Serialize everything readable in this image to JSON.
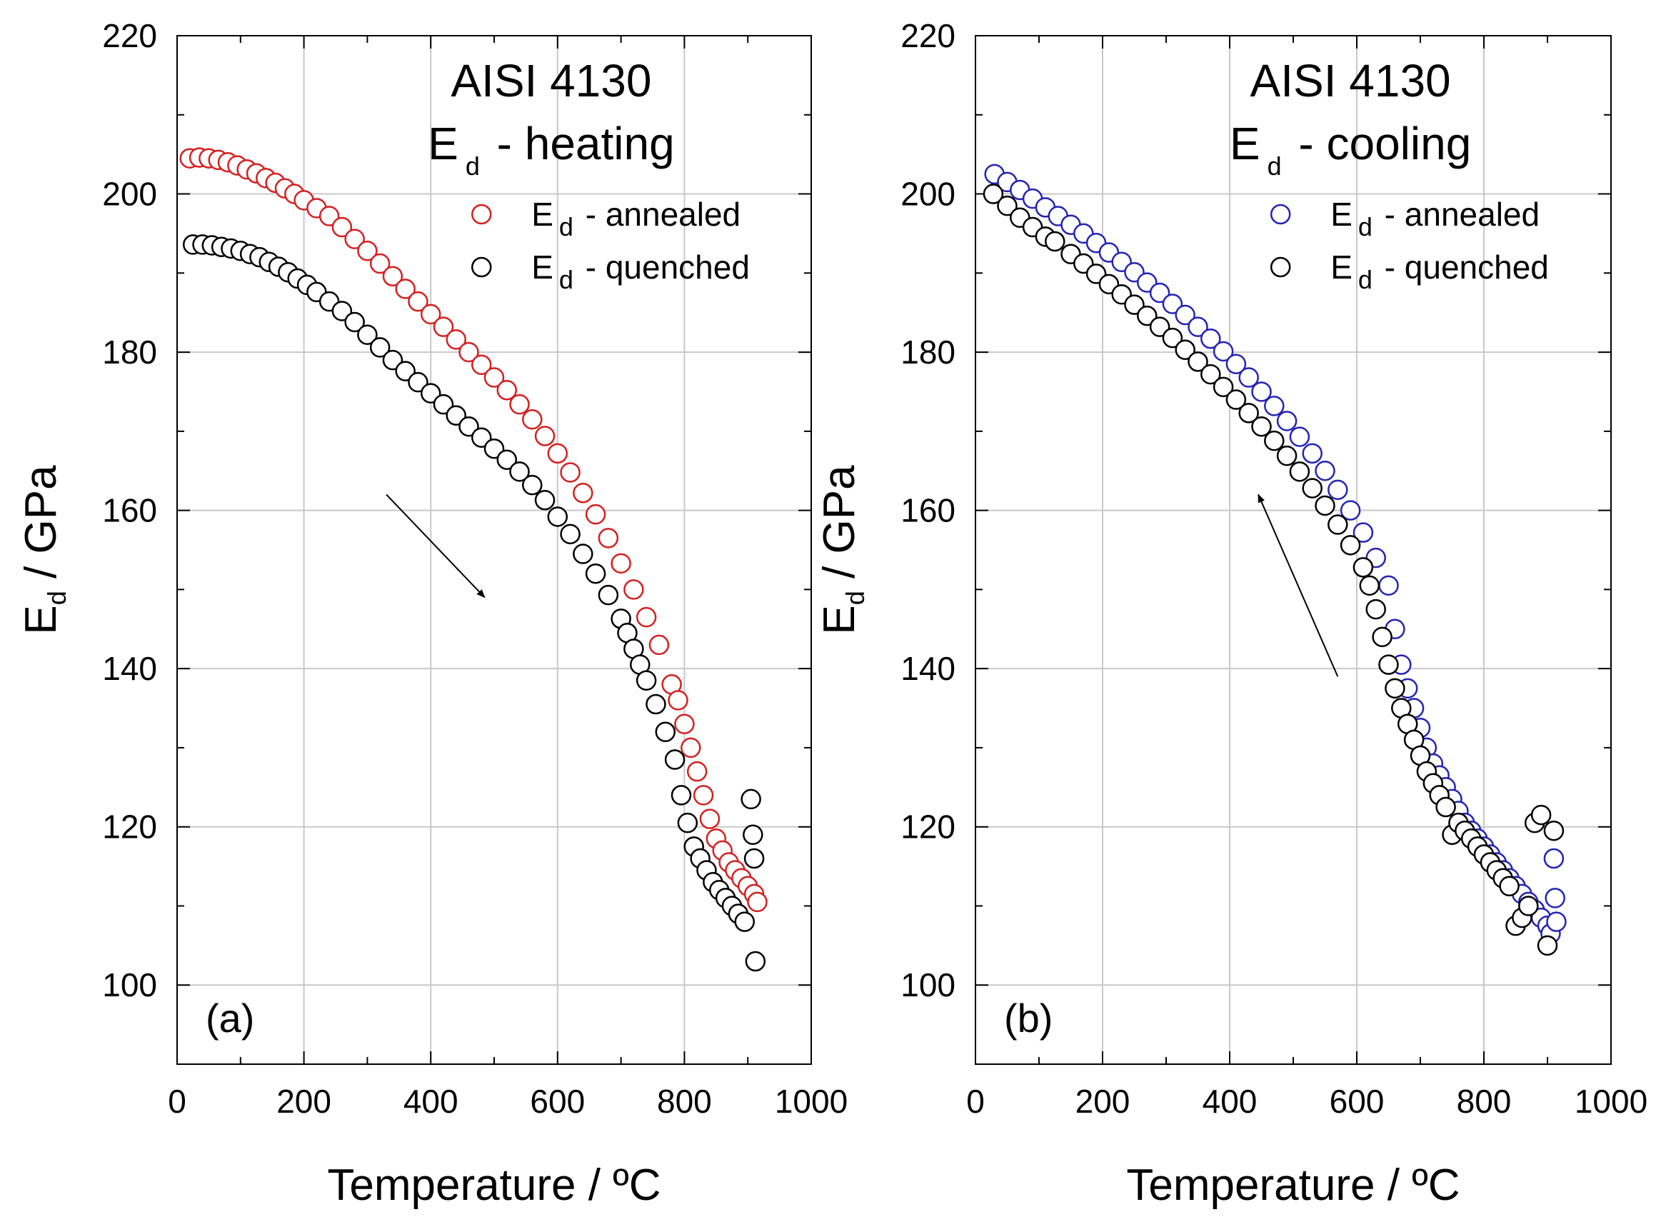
{
  "figure_note": "Dynamic Young's modulus vs temperature",
  "chart_data": [
    {
      "type": "scatter",
      "panel_label": "(a)",
      "title_line1": "AISI 4130",
      "title_main": "E",
      "title_sub": "d",
      "title_rest": " - heating",
      "xlabel": "Temperature  / ºC",
      "ylabel_main": "E",
      "ylabel_sub": "d",
      "ylabel_rest": "  / GPa",
      "xlim": [
        0,
        1000
      ],
      "ylim": [
        90,
        220
      ],
      "xticks": [
        0,
        200,
        400,
        600,
        800,
        1000
      ],
      "yticks": [
        100,
        120,
        140,
        160,
        180,
        200,
        220
      ],
      "grid": true,
      "legend_position": "top-right",
      "arrow": {
        "from": [
          330,
          162
        ],
        "to": [
          485,
          149
        ]
      },
      "series": [
        {
          "name_main": "E",
          "name_sub": "d",
          "name_rest": " - annealed",
          "color": "#d42020",
          "x": [
            20,
            35,
            50,
            65,
            80,
            95,
            110,
            125,
            140,
            155,
            170,
            185,
            200,
            220,
            240,
            260,
            280,
            300,
            320,
            340,
            360,
            380,
            400,
            420,
            440,
            460,
            480,
            500,
            520,
            540,
            560,
            580,
            600,
            620,
            640,
            660,
            680,
            700,
            720,
            740,
            760,
            780,
            790,
            800,
            810,
            820,
            830,
            840,
            850,
            860,
            870,
            880,
            890,
            900,
            910,
            915
          ],
          "y": [
            204.5,
            204.6,
            204.5,
            204.3,
            204.0,
            203.6,
            203.1,
            202.6,
            202.0,
            201.4,
            200.7,
            200.0,
            199.2,
            198.2,
            197.2,
            195.8,
            194.3,
            192.8,
            191.2,
            189.6,
            188.0,
            186.4,
            184.8,
            183.2,
            181.6,
            180.0,
            178.4,
            176.8,
            175.2,
            173.4,
            171.5,
            169.4,
            167.2,
            164.8,
            162.2,
            159.5,
            156.5,
            153.3,
            150.0,
            146.5,
            143.0,
            138.0,
            136.0,
            133.0,
            130.0,
            127.0,
            124.0,
            121.0,
            118.5,
            117.0,
            115.5,
            114.5,
            113.5,
            112.5,
            111.5,
            110.5
          ]
        },
        {
          "name_main": "E",
          "name_sub": "d",
          "name_rest": " - quenched",
          "color": "#000000",
          "x": [
            25,
            40,
            55,
            70,
            85,
            100,
            115,
            130,
            145,
            160,
            175,
            190,
            205,
            220,
            240,
            260,
            280,
            300,
            320,
            340,
            360,
            380,
            400,
            420,
            440,
            460,
            480,
            500,
            520,
            540,
            560,
            580,
            600,
            620,
            640,
            660,
            680,
            700,
            710,
            720,
            730,
            740,
            755,
            770,
            785,
            795,
            805,
            815,
            825,
            835,
            845,
            855,
            865,
            875,
            885,
            895,
            905,
            908,
            910,
            912
          ],
          "y": [
            193.6,
            193.6,
            193.5,
            193.3,
            193.1,
            192.8,
            192.4,
            192.0,
            191.4,
            190.8,
            190.1,
            189.3,
            188.5,
            187.6,
            186.4,
            185.2,
            183.8,
            182.2,
            180.6,
            179.0,
            177.6,
            176.2,
            174.8,
            173.4,
            172.0,
            170.6,
            169.2,
            167.8,
            166.4,
            164.9,
            163.2,
            161.3,
            159.2,
            157.0,
            154.5,
            152.0,
            149.3,
            146.3,
            144.5,
            142.5,
            140.5,
            138.5,
            135.5,
            132.0,
            128.5,
            124.0,
            120.5,
            117.5,
            116.0,
            114.5,
            113.0,
            112.0,
            111.0,
            110.0,
            109.0,
            108.0,
            123.5,
            119.0,
            116.0,
            103.0
          ]
        }
      ]
    },
    {
      "type": "scatter",
      "panel_label": "(b)",
      "title_line1": "AISI 4130",
      "title_main": "E",
      "title_sub": "d",
      "title_rest": " - cooling",
      "xlabel": "Temperature  / ºC",
      "ylabel_main": "E",
      "ylabel_sub": "d",
      "ylabel_rest": "  / GPa",
      "xlim": [
        0,
        1000
      ],
      "ylim": [
        90,
        220
      ],
      "xticks": [
        0,
        200,
        400,
        600,
        800,
        1000
      ],
      "yticks": [
        100,
        120,
        140,
        160,
        180,
        200,
        220
      ],
      "grid": true,
      "legend_position": "top-right",
      "arrow": {
        "from": [
          570,
          139
        ],
        "to": [
          445,
          162
        ]
      },
      "series": [
        {
          "name_main": "E",
          "name_sub": "d",
          "name_rest": " - annealed",
          "color": "#2424b4",
          "x": [
            30,
            50,
            70,
            90,
            110,
            130,
            150,
            170,
            190,
            210,
            230,
            250,
            270,
            290,
            310,
            330,
            350,
            370,
            390,
            410,
            430,
            450,
            470,
            490,
            510,
            530,
            550,
            570,
            590,
            610,
            630,
            650,
            660,
            670,
            680,
            690,
            700,
            710,
            720,
            730,
            740,
            750,
            760,
            770,
            780,
            790,
            800,
            810,
            820,
            830,
            840,
            850,
            860,
            870,
            880,
            890,
            900,
            905,
            910,
            912,
            914
          ],
          "y": [
            202.5,
            201.5,
            200.5,
            199.4,
            198.3,
            197.2,
            196.1,
            195.0,
            193.8,
            192.6,
            191.4,
            190.1,
            188.8,
            187.5,
            186.1,
            184.7,
            183.2,
            181.7,
            180.1,
            178.5,
            176.8,
            175.0,
            173.2,
            171.3,
            169.3,
            167.2,
            165.0,
            162.6,
            160.0,
            157.2,
            154.0,
            150.5,
            145.0,
            140.5,
            137.5,
            135.0,
            132.5,
            130.0,
            128.0,
            126.5,
            125.0,
            123.5,
            122.0,
            120.5,
            119.5,
            118.5,
            117.5,
            116.5,
            115.5,
            114.5,
            113.5,
            112.5,
            111.5,
            110.5,
            109.5,
            108.5,
            107.5,
            106.5,
            116.0,
            111.0,
            108.0
          ]
        },
        {
          "name_main": "E",
          "name_sub": "d",
          "name_rest": " - quenched",
          "color": "#000000",
          "x": [
            28,
            50,
            70,
            90,
            110,
            125,
            150,
            170,
            190,
            210,
            230,
            250,
            270,
            290,
            310,
            330,
            350,
            370,
            390,
            410,
            430,
            450,
            470,
            490,
            510,
            530,
            550,
            570,
            590,
            610,
            620,
            630,
            640,
            650,
            660,
            670,
            680,
            690,
            700,
            710,
            720,
            730,
            740,
            750,
            760,
            770,
            780,
            790,
            800,
            810,
            820,
            830,
            840,
            850,
            860,
            870,
            880,
            890,
            900,
            910
          ],
          "y": [
            200.0,
            198.5,
            197.0,
            195.8,
            194.6,
            194.0,
            192.4,
            191.2,
            189.9,
            188.6,
            187.3,
            186.0,
            184.6,
            183.2,
            181.8,
            180.3,
            178.8,
            177.2,
            175.6,
            174.0,
            172.3,
            170.6,
            168.8,
            166.9,
            164.9,
            162.8,
            160.6,
            158.2,
            155.6,
            152.8,
            150.5,
            147.5,
            144.0,
            140.5,
            137.5,
            135.0,
            133.0,
            131.0,
            129.0,
            127.0,
            125.5,
            124.0,
            122.5,
            119.0,
            120.5,
            119.5,
            118.5,
            117.5,
            116.5,
            115.5,
            114.5,
            113.5,
            112.5,
            107.5,
            108.5,
            110.0,
            120.5,
            121.5,
            105.0,
            119.5
          ]
        }
      ]
    }
  ]
}
